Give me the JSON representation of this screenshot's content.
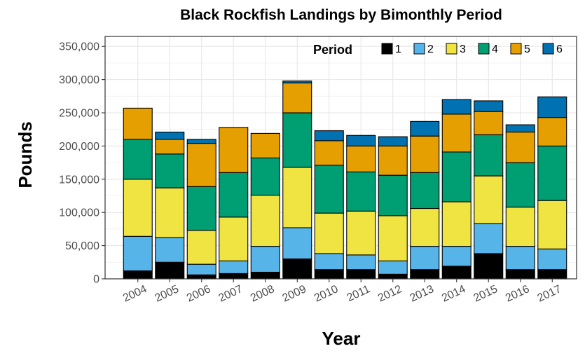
{
  "chart_data": {
    "type": "bar",
    "stacked": true,
    "title": "Black Rockfish Landings by Bimonthly Period",
    "xlabel": "Year",
    "ylabel": "Pounds",
    "categories": [
      "2004",
      "2005",
      "2006",
      "2007",
      "2008",
      "2009",
      "2010",
      "2011",
      "2012",
      "2013",
      "2014",
      "2015",
      "2016",
      "2017"
    ],
    "ylim": [
      0,
      365000
    ],
    "yticks": [
      0,
      50000,
      100000,
      150000,
      200000,
      250000,
      300000,
      350000
    ],
    "ytick_labels": [
      "0",
      "50,000",
      "100,000",
      "150,000",
      "200,000",
      "250,000",
      "300,000",
      "350,000"
    ],
    "grid": true,
    "legend": {
      "title": "Period",
      "position": "top-right"
    },
    "series": [
      {
        "name": "1",
        "color": "#000000",
        "values": [
          12000,
          25000,
          6000,
          8000,
          10000,
          30000,
          14000,
          14000,
          7000,
          14000,
          19000,
          38000,
          14000,
          14000
        ]
      },
      {
        "name": "2",
        "color": "#56B4E9",
        "values": [
          52000,
          37000,
          16000,
          19000,
          39000,
          47000,
          24000,
          22000,
          20000,
          35000,
          30000,
          45000,
          35000,
          31000
        ]
      },
      {
        "name": "3",
        "color": "#F0E442",
        "values": [
          86000,
          75000,
          51000,
          66000,
          77000,
          91000,
          61000,
          66000,
          68000,
          57000,
          67000,
          72000,
          59000,
          73000
        ]
      },
      {
        "name": "4",
        "color": "#009E73",
        "values": [
          60000,
          51000,
          66000,
          67000,
          56000,
          82000,
          72000,
          59000,
          61000,
          54000,
          75000,
          62000,
          67000,
          82000
        ]
      },
      {
        "name": "5",
        "color": "#E69F00",
        "values": [
          47000,
          22000,
          65000,
          68000,
          37000,
          45000,
          37000,
          39000,
          44000,
          55000,
          57000,
          35000,
          46000,
          43000
        ]
      },
      {
        "name": "6",
        "color": "#0072B2",
        "values": [
          0,
          11000,
          6000,
          0,
          0,
          3000,
          15000,
          16000,
          14000,
          22000,
          22000,
          16000,
          11000,
          31000
        ]
      }
    ]
  }
}
